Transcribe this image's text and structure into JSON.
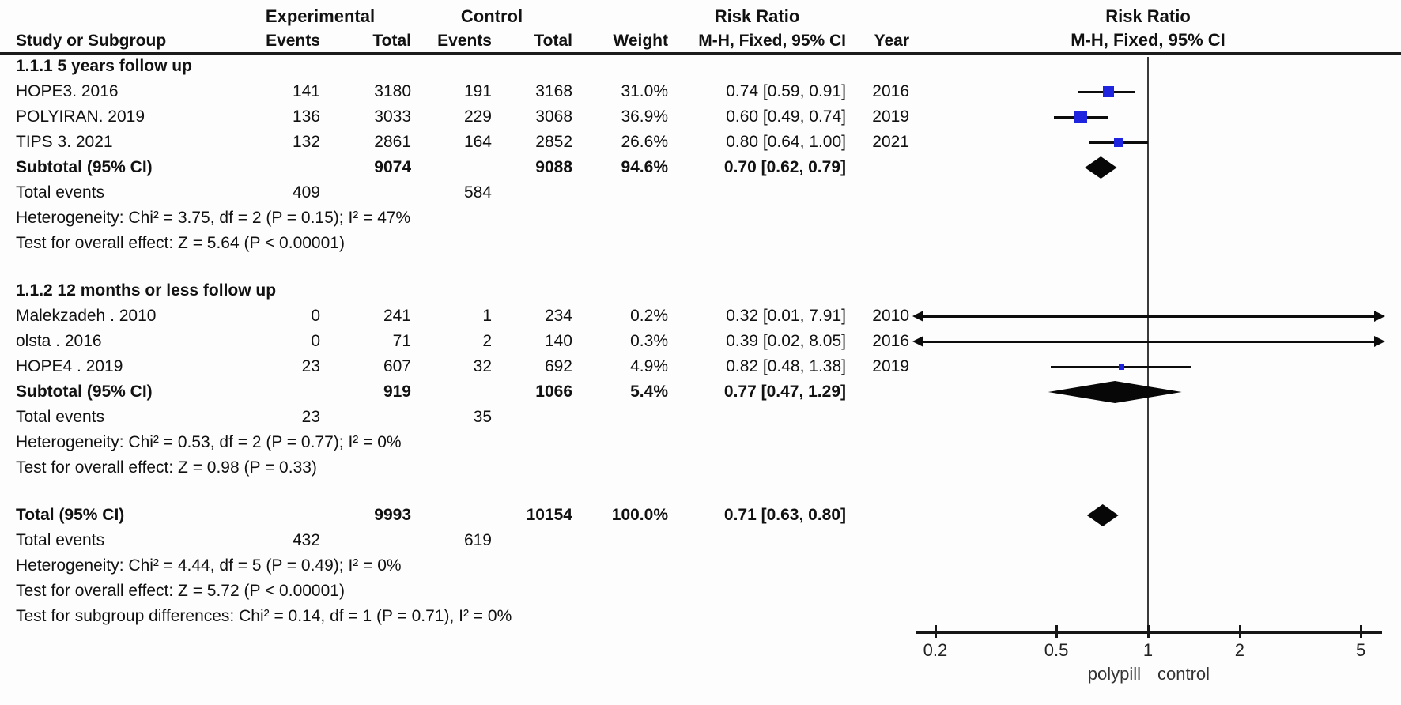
{
  "header": {
    "experimental": "Experimental",
    "control": "Control",
    "risk_ratio_left": "Risk Ratio",
    "risk_ratio_right": "Risk Ratio",
    "study_col": "Study or Subgroup",
    "events_col": "Events",
    "total_col": "Total",
    "events2_col": "Events",
    "total2_col": "Total",
    "weight_col": "Weight",
    "ci_col": "M-H, Fixed, 95% CI",
    "year_col": "Year",
    "ci_col_right": "M-H, Fixed, 95% CI"
  },
  "colors": {
    "square_blue": "#1f24de",
    "diamond_black": "#070707"
  },
  "chart_data": {
    "type": "forest",
    "effect_measure": "Risk Ratio",
    "method": "M-H, Fixed, 95% CI",
    "x_scale": "log",
    "axis": {
      "ticks": [
        0.2,
        0.5,
        1,
        2,
        5
      ],
      "min": 0.2,
      "max": 5,
      "null_line": 1,
      "left_label": "polypill",
      "right_label": "control"
    },
    "rows": [
      {
        "type": "subgroup_header",
        "label": "1.1.1 5 years follow up"
      },
      {
        "type": "study",
        "study": "HOPE3. 2016",
        "exp_events": "141",
        "exp_total": "3180",
        "ctrl_events": "191",
        "ctrl_total": "3168",
        "weight": "31.0%",
        "weight_pct": 31.0,
        "ci_label": "0.74 [0.59, 0.91]",
        "year": "2016",
        "est": 0.74,
        "lo": 0.59,
        "hi": 0.91
      },
      {
        "type": "study",
        "study": "POLYIRAN. 2019",
        "exp_events": "136",
        "exp_total": "3033",
        "ctrl_events": "229",
        "ctrl_total": "3068",
        "weight": "36.9%",
        "weight_pct": 36.9,
        "ci_label": "0.60 [0.49, 0.74]",
        "year": "2019",
        "est": 0.6,
        "lo": 0.49,
        "hi": 0.74
      },
      {
        "type": "study",
        "study": "TIPS 3. 2021",
        "exp_events": "132",
        "exp_total": "2861",
        "ctrl_events": "164",
        "ctrl_total": "2852",
        "weight": "26.6%",
        "weight_pct": 26.6,
        "ci_label": "0.80 [0.64, 1.00]",
        "year": "2021",
        "est": 0.8,
        "lo": 0.64,
        "hi": 1.0
      },
      {
        "type": "subtotal",
        "label": "Subtotal (95% CI)",
        "exp_total": "9074",
        "ctrl_total": "9088",
        "weight": "94.6%",
        "ci_label": "0.70 [0.62, 0.79]",
        "est": 0.7,
        "lo": 0.62,
        "hi": 0.79
      },
      {
        "type": "total_events",
        "label": "Total events",
        "exp_events": "409",
        "ctrl_events": "584"
      },
      {
        "type": "note",
        "label": "Heterogeneity: Chi² = 3.75, df = 2 (P = 0.15); I² = 47%"
      },
      {
        "type": "note",
        "label": "Test for overall effect: Z = 5.64 (P < 0.00001)"
      },
      {
        "type": "subgroup_header",
        "label": "1.1.2 12 months or less follow up",
        "gap_before": true
      },
      {
        "type": "study",
        "study": "Malekzadeh . 2010",
        "exp_events": "0",
        "exp_total": "241",
        "ctrl_events": "1",
        "ctrl_total": "234",
        "weight": "0.2%",
        "weight_pct": 0.2,
        "ci_label": "0.32 [0.01, 7.91]",
        "year": "2010",
        "est": 0.32,
        "lo": 0.01,
        "hi": 7.91
      },
      {
        "type": "study",
        "study": "olsta . 2016",
        "exp_events": "0",
        "exp_total": "71",
        "ctrl_events": "2",
        "ctrl_total": "140",
        "weight": "0.3%",
        "weight_pct": 0.3,
        "ci_label": "0.39 [0.02, 8.05]",
        "year": "2016",
        "est": 0.39,
        "lo": 0.02,
        "hi": 8.05
      },
      {
        "type": "study",
        "study": "HOPE4 . 2019",
        "exp_events": "23",
        "exp_total": "607",
        "ctrl_events": "32",
        "ctrl_total": "692",
        "weight": "4.9%",
        "weight_pct": 4.9,
        "ci_label": "0.82 [0.48, 1.38]",
        "year": "2019",
        "est": 0.82,
        "lo": 0.48,
        "hi": 1.38
      },
      {
        "type": "subtotal",
        "label": "Subtotal (95% CI)",
        "exp_total": "919",
        "ctrl_total": "1066",
        "weight": "5.4%",
        "ci_label": "0.77 [0.47, 1.29]",
        "est": 0.77,
        "lo": 0.47,
        "hi": 1.29
      },
      {
        "type": "total_events",
        "label": "Total events",
        "exp_events": "23",
        "ctrl_events": "35"
      },
      {
        "type": "note",
        "label": "Heterogeneity: Chi² = 0.53, df = 2 (P = 0.77); I² = 0%"
      },
      {
        "type": "note",
        "label": "Test for overall effect: Z = 0.98 (P = 0.33)"
      },
      {
        "type": "total",
        "label": "Total (95% CI)",
        "exp_total": "9993",
        "ctrl_total": "10154",
        "weight": "100.0%",
        "ci_label": "0.71 [0.63, 0.80]",
        "est": 0.71,
        "lo": 0.63,
        "hi": 0.8,
        "gap_before": true
      },
      {
        "type": "total_events",
        "label": "Total events",
        "exp_events": "432",
        "ctrl_events": "619"
      },
      {
        "type": "note",
        "label": "Heterogeneity: Chi² = 4.44, df = 5 (P = 0.49); I² = 0%"
      },
      {
        "type": "note",
        "label": "Test for overall effect: Z = 5.72 (P < 0.00001)"
      },
      {
        "type": "note",
        "label": "Test for subgroup differences: Chi² = 0.14, df = 1 (P = 0.71), I² = 0%"
      }
    ]
  }
}
